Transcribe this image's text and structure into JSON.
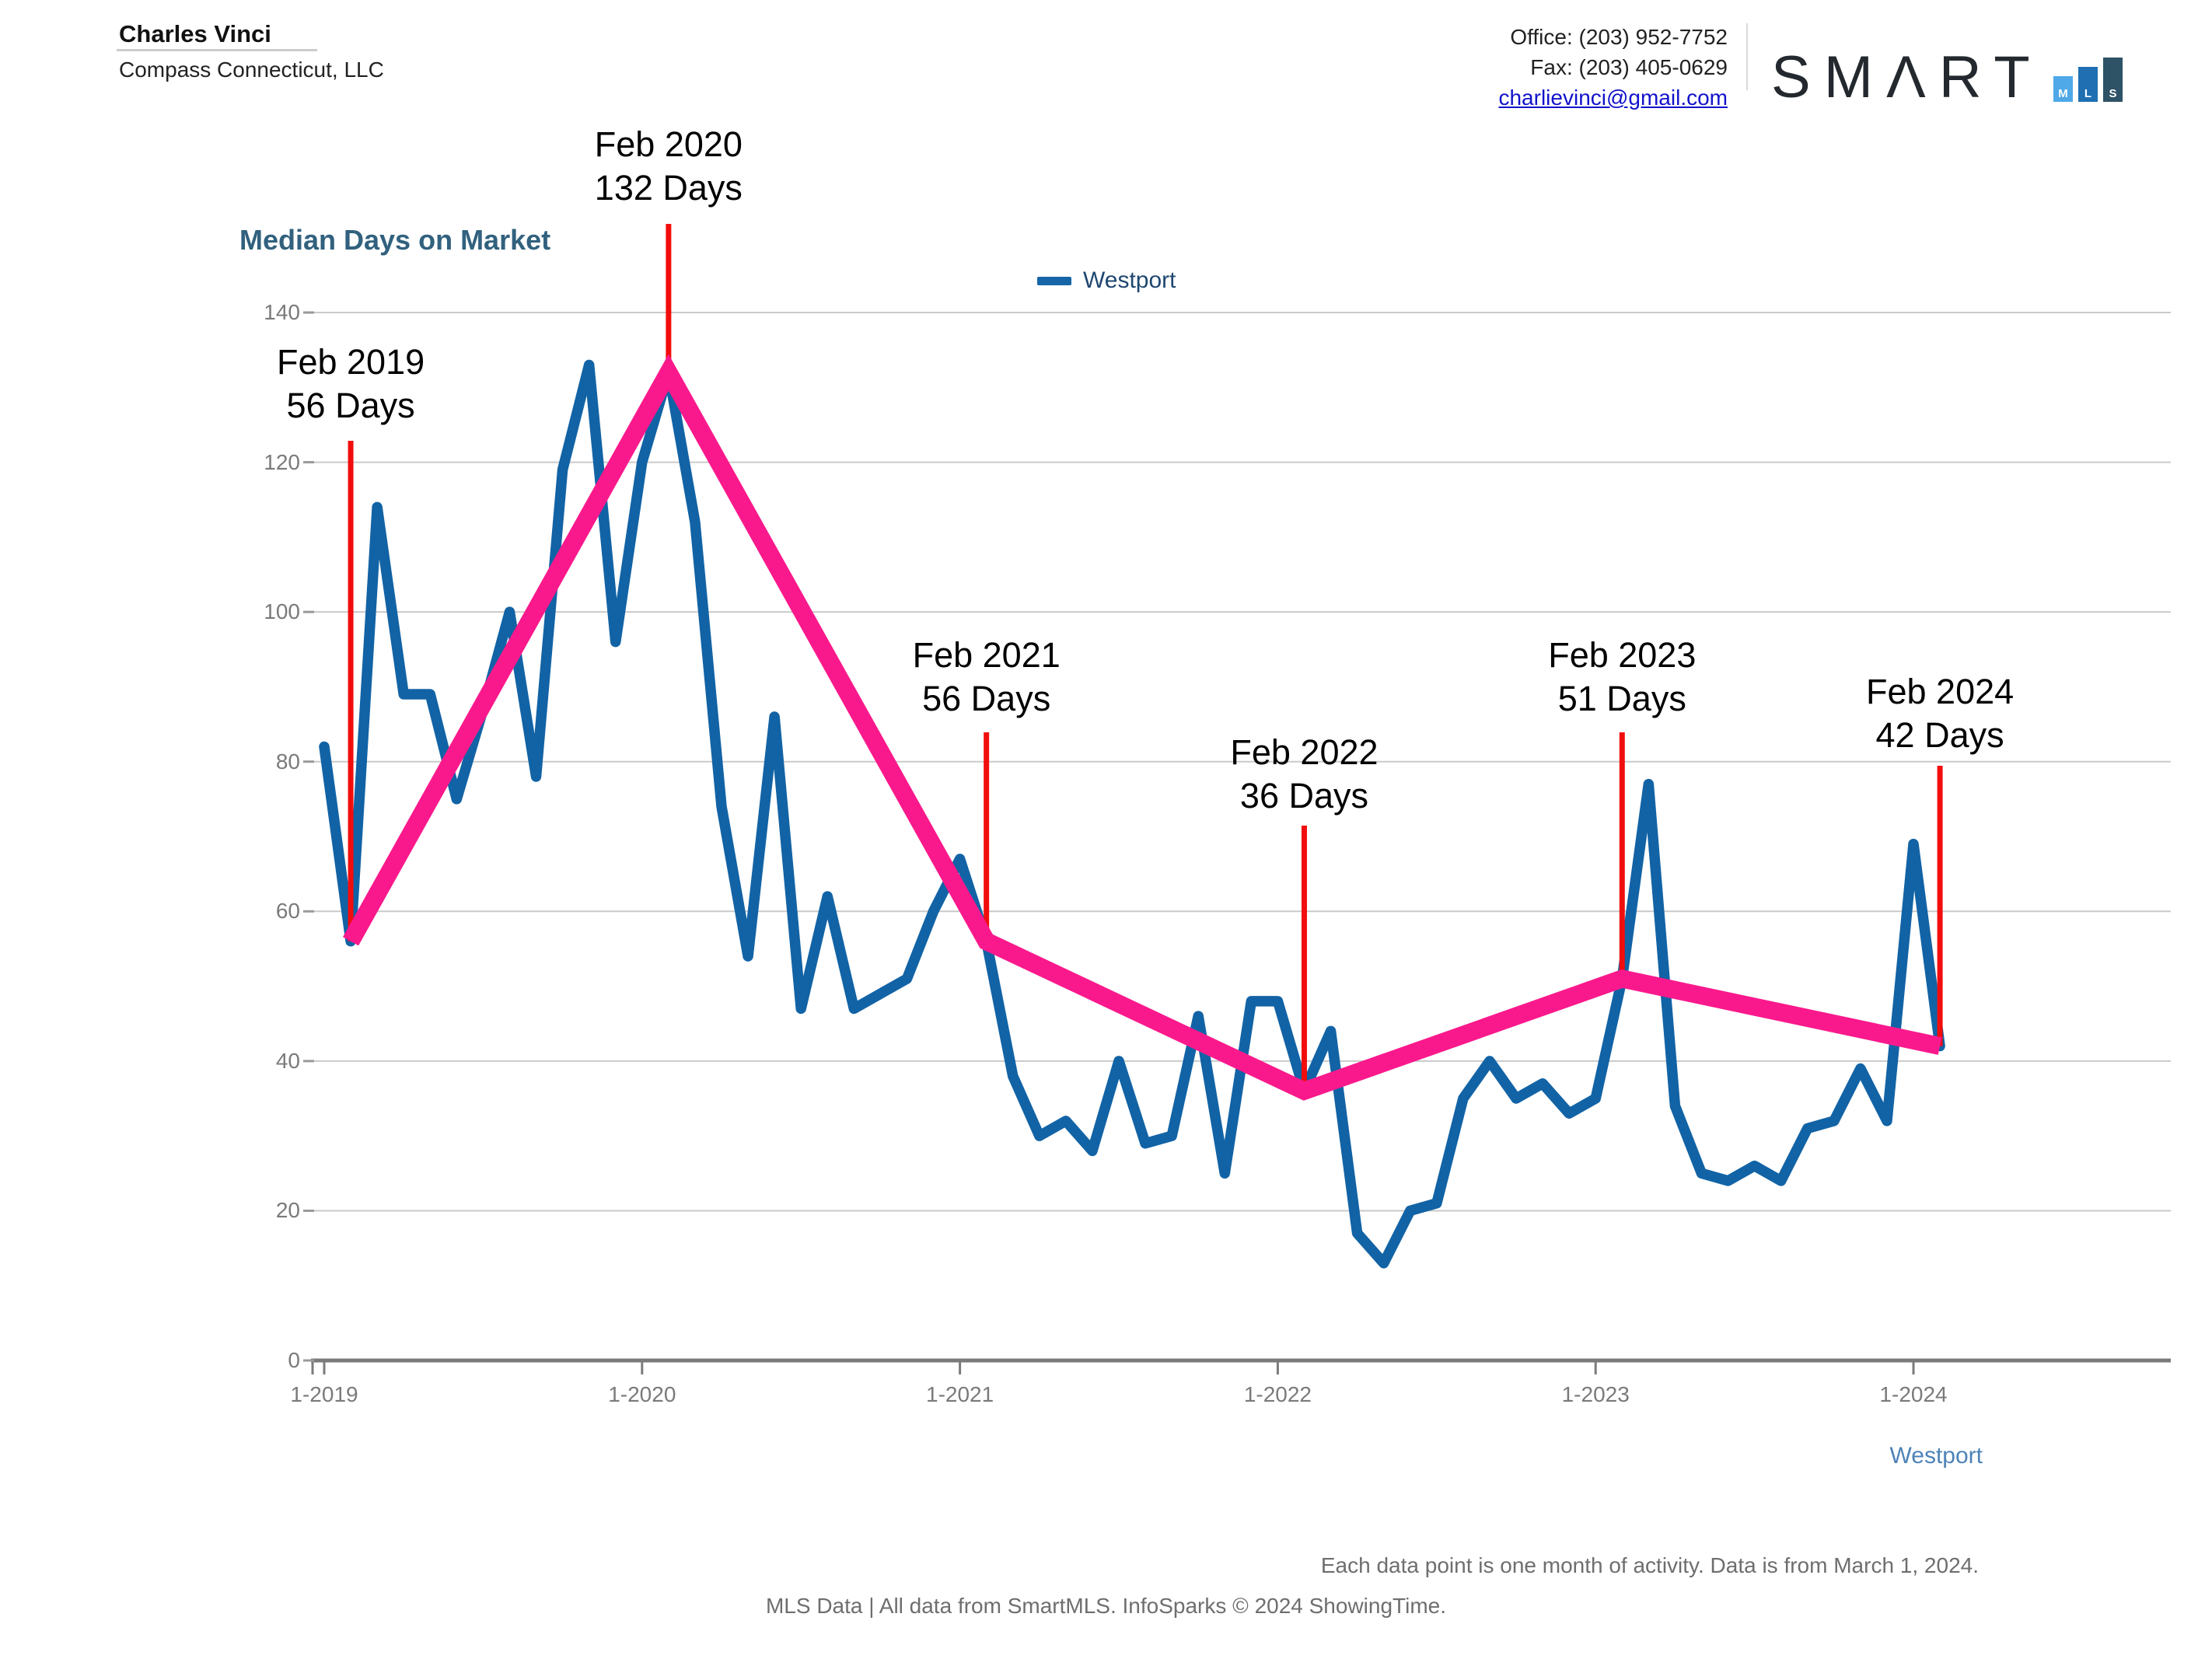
{
  "header": {
    "agent_name": "Charles Vinci",
    "company": "Compass Connecticut, LLC",
    "office_phone": "Office: (203) 952-7752",
    "fax": "Fax: (203) 405-0629",
    "email": "charlievinci@gmail.com",
    "logo": {
      "wordmark": "SMΛRT",
      "bars": [
        {
          "letter": "M",
          "color": "#4fa8e8",
          "height": 33
        },
        {
          "letter": "L",
          "color": "#1f6fb2",
          "height": 45
        },
        {
          "letter": "S",
          "color": "#2e5266",
          "height": 57
        }
      ]
    }
  },
  "chart_data": {
    "type": "line",
    "title": "Median Days on Market",
    "ylabel": "",
    "xlabel": "",
    "ylim": [
      0,
      140
    ],
    "y_ticks": [
      0,
      20,
      40,
      60,
      80,
      100,
      120,
      140
    ],
    "grid": true,
    "x_start": "1-2019",
    "x_end": "2-2024",
    "frequency": "monthly",
    "x_tick_labels": [
      "1-2019",
      "1-2020",
      "1-2021",
      "1-2022",
      "1-2023",
      "1-2024"
    ],
    "x_tick_month_indices": [
      0,
      12,
      24,
      36,
      48,
      60
    ],
    "legend": {
      "label": "Westport",
      "color": "#1666a7",
      "position": "top-center"
    },
    "series": [
      {
        "name": "Westport",
        "color": "#1263a5",
        "values": [
          82,
          56,
          114,
          89,
          89,
          75,
          87,
          100,
          78,
          119,
          133,
          96,
          120,
          132,
          112,
          74,
          54,
          86,
          47,
          62,
          47,
          49,
          51,
          60,
          67,
          56,
          38,
          30,
          32,
          28,
          40,
          29,
          30,
          46,
          25,
          48,
          48,
          36,
          44,
          17,
          13,
          20,
          21,
          35,
          40,
          35,
          37,
          33,
          35,
          51,
          77,
          34,
          25,
          24,
          26,
          24,
          31,
          32,
          39,
          32,
          69,
          42
        ]
      }
    ],
    "trend_line": {
      "color": "#fa198c",
      "points": [
        {
          "month_index": 1,
          "value": 56
        },
        {
          "month_index": 13,
          "value": 132
        },
        {
          "month_index": 25,
          "value": 56
        },
        {
          "month_index": 37,
          "value": 36
        },
        {
          "month_index": 49,
          "value": 51
        },
        {
          "month_index": 61,
          "value": 42
        }
      ]
    },
    "annotations": [
      {
        "line1": "Feb 2019",
        "line2": "56 Days",
        "month_index": 1,
        "value": 56
      },
      {
        "line1": "Feb 2020",
        "line2": "132 Days",
        "month_index": 13,
        "value": 132
      },
      {
        "line1": "Feb 2021",
        "line2": "56 Days",
        "month_index": 25,
        "value": 56
      },
      {
        "line1": "Feb 2022",
        "line2": "36 Days",
        "month_index": 37,
        "value": 36
      },
      {
        "line1": "Feb 2023",
        "line2": "51 Days",
        "month_index": 49,
        "value": 51
      },
      {
        "line1": "Feb 2024",
        "line2": "42 Days",
        "month_index": 61,
        "value": 42
      }
    ],
    "annotation_color": "#f20d0d",
    "series_axis_label": "Westport"
  },
  "footer": {
    "note_right": "Each data point is one month of activity. Data is from March 1, 2024.",
    "note_center": "MLS Data | All data from SmartMLS. InfoSparks © 2024 ShowingTime."
  }
}
